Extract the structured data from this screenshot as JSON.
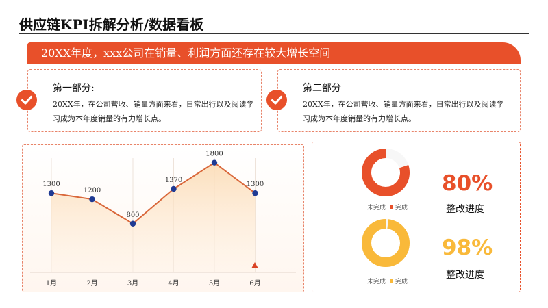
{
  "header": {
    "title": "供应链KPI拆解分析/数据看板"
  },
  "banner": {
    "text": "20XX年度，xxx公司在销量、利润方面还存在较大增长空间"
  },
  "cards": [
    {
      "title": "第一部分:",
      "body": "20XX年，在公司营收、销量方面来看，日常出行以及阅读学习成为本年度销量的有力增长点。"
    },
    {
      "title": "第二部分",
      "body": "20XX年，在公司营收、销量方面来看，日常出行以及阅读学习成为本年度销量的有力增长点。"
    }
  ],
  "colors": {
    "accent": "#e8502a",
    "yellow": "#f9b93a",
    "line": "#d9673a",
    "point": "#1f3a93",
    "donut_bg": "#f7f7f7"
  },
  "chart_data": {
    "type": "area",
    "categories": [
      "1月",
      "2月",
      "3月",
      "4月",
      "5月",
      "6月"
    ],
    "values": [
      1300,
      1200,
      800,
      1370,
      1800,
      1300
    ],
    "ylim": [
      0,
      2100
    ],
    "title": "",
    "xlabel": "",
    "ylabel": ""
  },
  "kpis": [
    {
      "value": 0.8,
      "percent_text": "80%",
      "label": "整改进度",
      "legend_incomplete": "未完成",
      "legend_complete": "完成",
      "color": "#e8502a"
    },
    {
      "value": 0.98,
      "percent_text": "98%",
      "label": "整改进度",
      "legend_incomplete": "未完成",
      "legend_complete": "完成",
      "color": "#f9b93a"
    }
  ]
}
